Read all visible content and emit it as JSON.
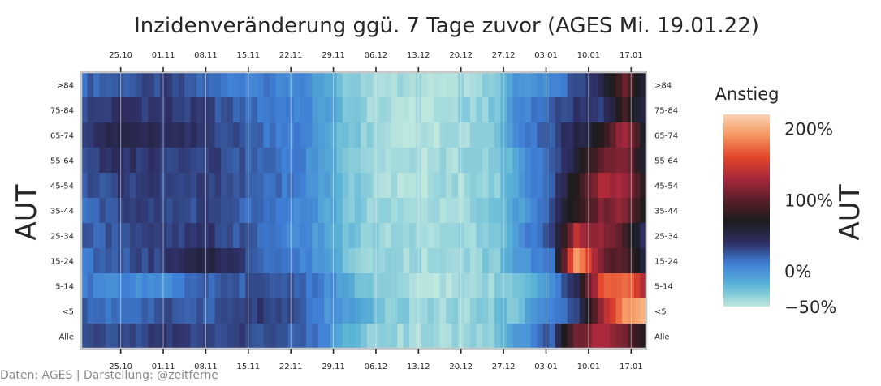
{
  "chart_data": {
    "type": "heatmap",
    "title": "Inzidenveränderung ggü. 7 Tage zuvor (AGES Mi. 19.01.22)",
    "ylabel_left": "AUT",
    "ylabel_right": "AUT",
    "x_tick_labels": [
      "25.10",
      "01.11",
      "08.11",
      "15.11",
      "22.11",
      "29.11",
      "06.12",
      "13.12",
      "20.12",
      "27.12",
      "03.01",
      "10.01",
      "17.01"
    ],
    "x_tick_days": [
      7,
      14,
      21,
      28,
      35,
      42,
      49,
      56,
      63,
      70,
      77,
      84,
      91
    ],
    "days": 93,
    "rows": [
      ">84",
      "75-84",
      "65-74",
      "55-64",
      "45-54",
      "35-44",
      "25-34",
      "15-24",
      "5-14",
      "<5",
      "Alle"
    ],
    "value_unit": "fraction change vs. 7 days earlier",
    "colorbar": {
      "title": "Anstieg",
      "min": -0.5,
      "max": 2.2,
      "ticks": [
        {
          "value": 2.0,
          "label": "200%"
        },
        {
          "value": 1.0,
          "label": "100%"
        },
        {
          "value": 0.0,
          "label": "0%"
        },
        {
          "value": -0.5,
          "label": "−50%"
        }
      ],
      "colors": [
        "#bfe8df",
        "#5bb5d6",
        "#3f7fd6",
        "#2e2e63",
        "#1c1c1e",
        "#5a1f2a",
        "#a8283c",
        "#e3452a",
        "#f5955e",
        "#fbd2b2"
      ]
    },
    "anchors": [
      {
        "day": 0,
        "values": [
          0.2,
          0.3,
          0.4,
          0.3,
          0.25,
          0.2,
          0.2,
          0.15,
          0.1,
          0.2,
          0.25
        ]
      },
      {
        "day": 7,
        "values": [
          0.25,
          0.4,
          0.5,
          0.4,
          0.35,
          0.3,
          0.3,
          0.25,
          0.05,
          0.15,
          0.3
        ]
      },
      {
        "day": 14,
        "values": [
          0.3,
          0.35,
          0.4,
          0.35,
          0.35,
          0.3,
          0.3,
          0.35,
          0.05,
          0.25,
          0.35
        ]
      },
      {
        "day": 21,
        "values": [
          0.15,
          0.3,
          0.35,
          0.35,
          0.3,
          0.3,
          0.35,
          0.55,
          0.2,
          0.25,
          0.3
        ]
      },
      {
        "day": 28,
        "values": [
          0.1,
          0.15,
          0.2,
          0.2,
          0.2,
          0.15,
          0.2,
          0.25,
          0.25,
          0.35,
          0.3
        ]
      },
      {
        "day": 35,
        "values": [
          0.05,
          0.1,
          0.1,
          0.1,
          0.1,
          0.05,
          0.05,
          0.1,
          0.25,
          0.25,
          0.2
        ]
      },
      {
        "day": 40,
        "values": [
          -0.15,
          -0.1,
          -0.1,
          -0.1,
          -0.1,
          -0.1,
          -0.1,
          -0.05,
          0.05,
          0.0,
          0.05
        ]
      },
      {
        "day": 44,
        "values": [
          -0.35,
          -0.3,
          -0.3,
          -0.3,
          -0.3,
          -0.3,
          -0.3,
          -0.3,
          -0.2,
          -0.1,
          -0.25
        ]
      },
      {
        "day": 49,
        "values": [
          -0.4,
          -0.45,
          -0.45,
          -0.42,
          -0.42,
          -0.4,
          -0.4,
          -0.38,
          -0.38,
          -0.3,
          -0.38
        ]
      },
      {
        "day": 56,
        "values": [
          -0.45,
          -0.48,
          -0.48,
          -0.45,
          -0.45,
          -0.42,
          -0.42,
          -0.42,
          -0.48,
          -0.4,
          -0.42
        ]
      },
      {
        "day": 63,
        "values": [
          -0.4,
          -0.38,
          -0.42,
          -0.4,
          -0.4,
          -0.38,
          -0.4,
          -0.38,
          -0.44,
          -0.38,
          -0.4
        ]
      },
      {
        "day": 68,
        "values": [
          -0.3,
          -0.32,
          -0.3,
          -0.35,
          -0.35,
          -0.32,
          -0.32,
          -0.32,
          -0.36,
          -0.3,
          -0.32
        ]
      },
      {
        "day": 71,
        "values": [
          0.0,
          0.05,
          0.0,
          -0.1,
          -0.1,
          -0.1,
          -0.05,
          -0.1,
          -0.3,
          -0.25,
          -0.1
        ]
      },
      {
        "day": 77,
        "values": [
          0.05,
          0.2,
          0.25,
          0.2,
          0.25,
          0.25,
          0.3,
          0.2,
          0.05,
          0.1,
          0.25
        ]
      },
      {
        "day": 81,
        "values": [
          0.3,
          0.4,
          0.5,
          0.6,
          0.8,
          0.8,
          1.4,
          2.0,
          0.5,
          0.3,
          1.1
        ]
      },
      {
        "day": 85,
        "values": [
          0.5,
          0.3,
          0.7,
          1.0,
          1.3,
          1.1,
          1.2,
          1.1,
          1.6,
          1.2,
          1.3
        ]
      },
      {
        "day": 89,
        "values": [
          1.0,
          0.9,
          1.3,
          1.2,
          1.25,
          1.2,
          0.9,
          0.9,
          1.8,
          1.9,
          1.1
        ]
      },
      {
        "day": 92,
        "values": [
          0.6,
          0.5,
          0.7,
          0.6,
          0.8,
          0.7,
          0.4,
          0.5,
          1.3,
          2.0,
          0.7
        ]
      }
    ]
  },
  "credit": "Daten: AGES | Darstellung: @zeitferne"
}
